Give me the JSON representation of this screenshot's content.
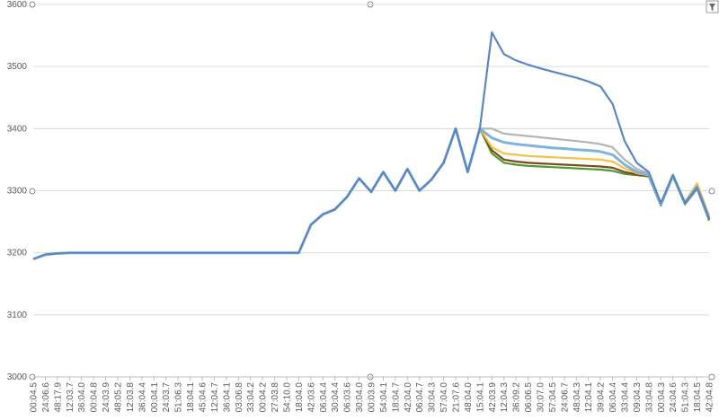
{
  "chart_data": {
    "type": "line",
    "categories": [
      "00:04.5",
      "24:06.6",
      "48:17.9",
      "12:03.7",
      "36:04.0",
      "00:04.8",
      "24:03.9",
      "48:05.2",
      "12:03.8",
      "36:04.4",
      "00:04.1",
      "24:03.7",
      "51:06.3",
      "18:04.1",
      "45:04.6",
      "12:04.7",
      "36:04.1",
      "03:06.8",
      "33:04.2",
      "00:04.2",
      "27:03.8",
      "54:10.0",
      "18:04.0",
      "42:03.6",
      "06:04.4",
      "30:04.4",
      "06:03.6",
      "30:04.0",
      "00:03.9",
      "54:04.1",
      "18:04.7",
      "42:04.0",
      "06:04.7",
      "30:04.3",
      "57:04.0",
      "21:07.6",
      "48:04.0",
      "15:04.1",
      "42:03.9",
      "12:04.3",
      "36:09.2",
      "06:06.5",
      "30:07.0",
      "57:04.5",
      "24:06.7",
      "48:04.3",
      "12:04.1",
      "39:04.2",
      "06:04.4",
      "33:04.4",
      "09:04.3",
      "33:04.8",
      "00:04.3",
      "24:04.6",
      "51:04.3",
      "18:04.5",
      "42:04.8"
    ],
    "series": [
      {
        "color": "#4e9a2e",
        "values": [
          3190,
          3197,
          3199,
          3200,
          3200,
          3200,
          3200,
          3200,
          3200,
          3200,
          3200,
          3200,
          3200,
          3200,
          3200,
          3200,
          3200,
          3200,
          3200,
          3200,
          3200,
          3200,
          3200,
          3245,
          3262,
          3270,
          3290,
          3320,
          3298,
          3330,
          3300,
          3335,
          3300,
          3318,
          3345,
          3400,
          3330,
          3400,
          3360,
          3345,
          3342,
          3340,
          3339,
          3338,
          3337,
          3336,
          3335,
          3334,
          3332,
          3327,
          3325,
          3323,
          3276,
          3323,
          3278,
          3303,
          3252
        ]
      },
      {
        "color": "#7a4a1e",
        "values": [
          3190,
          3197,
          3199,
          3200,
          3200,
          3200,
          3200,
          3200,
          3200,
          3200,
          3200,
          3200,
          3200,
          3200,
          3200,
          3200,
          3200,
          3200,
          3200,
          3200,
          3200,
          3200,
          3200,
          3245,
          3262,
          3270,
          3290,
          3320,
          3298,
          3330,
          3300,
          3335,
          3300,
          3318,
          3345,
          3400,
          3330,
          3400,
          3365,
          3350,
          3347,
          3345,
          3344,
          3343,
          3342,
          3341,
          3340,
          3339,
          3337,
          3330,
          3326,
          3324,
          3277,
          3324,
          3279,
          3304,
          3254
        ]
      },
      {
        "color": "#f5c242",
        "values": [
          3190,
          3197,
          3199,
          3200,
          3200,
          3200,
          3200,
          3200,
          3200,
          3200,
          3200,
          3200,
          3200,
          3200,
          3200,
          3200,
          3200,
          3200,
          3200,
          3200,
          3200,
          3200,
          3200,
          3245,
          3262,
          3270,
          3290,
          3320,
          3298,
          3330,
          3300,
          3335,
          3300,
          3318,
          3345,
          3400,
          3330,
          3400,
          3370,
          3360,
          3358,
          3356,
          3355,
          3354,
          3353,
          3352,
          3351,
          3350,
          3347,
          3336,
          3328,
          3325,
          3279,
          3326,
          3282,
          3312,
          3260
        ]
      },
      {
        "color": "#b4b4b4",
        "values": [
          3190,
          3197,
          3199,
          3200,
          3200,
          3200,
          3200,
          3200,
          3200,
          3200,
          3200,
          3200,
          3200,
          3200,
          3200,
          3200,
          3200,
          3200,
          3200,
          3200,
          3200,
          3200,
          3200,
          3245,
          3262,
          3270,
          3290,
          3320,
          3298,
          3330,
          3300,
          3335,
          3300,
          3318,
          3345,
          3400,
          3330,
          3400,
          3400,
          3392,
          3390,
          3388,
          3386,
          3384,
          3382,
          3380,
          3378,
          3375,
          3370,
          3350,
          3335,
          3328,
          3280,
          3325,
          3282,
          3308,
          3258
        ]
      },
      {
        "color": "#7fb2de",
        "values": [
          3190,
          3197,
          3199,
          3200,
          3200,
          3200,
          3200,
          3200,
          3200,
          3200,
          3200,
          3200,
          3200,
          3200,
          3200,
          3200,
          3200,
          3200,
          3200,
          3200,
          3200,
          3200,
          3200,
          3245,
          3262,
          3270,
          3290,
          3320,
          3298,
          3330,
          3300,
          3335,
          3300,
          3318,
          3345,
          3400,
          3330,
          3400,
          3385,
          3378,
          3375,
          3373,
          3371,
          3369,
          3368,
          3366,
          3365,
          3363,
          3358,
          3342,
          3330,
          3326,
          3278,
          3325,
          3280,
          3305,
          3255
        ]
      },
      {
        "color": "#5b86c5",
        "values": [
          3190,
          3197,
          3199,
          3200,
          3200,
          3200,
          3200,
          3200,
          3200,
          3200,
          3200,
          3200,
          3200,
          3200,
          3200,
          3200,
          3200,
          3200,
          3200,
          3200,
          3200,
          3200,
          3200,
          3245,
          3262,
          3270,
          3290,
          3320,
          3298,
          3330,
          3300,
          3335,
          3300,
          3318,
          3345,
          3400,
          3330,
          3400,
          3555,
          3520,
          3510,
          3503,
          3497,
          3492,
          3487,
          3482,
          3476,
          3468,
          3440,
          3380,
          3345,
          3330,
          3280,
          3325,
          3280,
          3305,
          3255
        ]
      }
    ],
    "ylim": [
      3000,
      3600
    ],
    "yticks": [
      3000,
      3100,
      3200,
      3300,
      3400,
      3500,
      3600
    ],
    "grid": true
  }
}
